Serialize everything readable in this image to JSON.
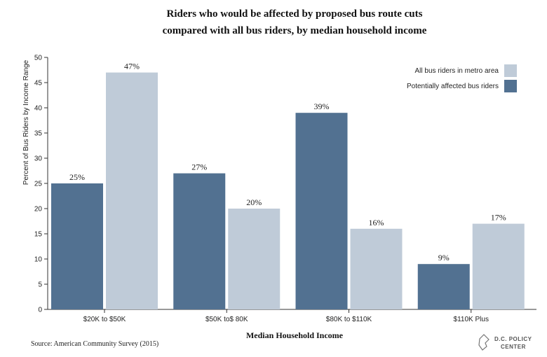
{
  "chart_data": {
    "type": "bar",
    "title_line1": "Riders who would be affected by proposed bus route cuts",
    "title_line2": "compared with all bus riders, by median household income",
    "xlabel": "Median Household Income",
    "ylabel": "Percent of Bus Riders by Income Range",
    "ylim": [
      0,
      50
    ],
    "yticks": [
      0,
      5,
      10,
      15,
      20,
      25,
      30,
      35,
      40,
      45,
      50
    ],
    "grid": false,
    "legend_position": "top-right",
    "categories": [
      "$20K to $50K",
      "$50K to$ 80K",
      "$80K to $110K",
      "$110K Plus"
    ],
    "series": [
      {
        "name": "Potentially affected bus riders",
        "values": [
          25,
          27,
          39,
          9
        ],
        "color": "#527191"
      },
      {
        "name": "All bus riders in metro area",
        "values": [
          47,
          20,
          16,
          17
        ],
        "color": "#bfcbd8"
      }
    ],
    "legend_order": [
      1,
      0
    ],
    "value_suffix": "%",
    "source": "Source: American Community Survey (2015)"
  },
  "logo": {
    "line1": "D.C. POLICY",
    "line2": "CENTER",
    "icon": "dc-map-icon"
  }
}
